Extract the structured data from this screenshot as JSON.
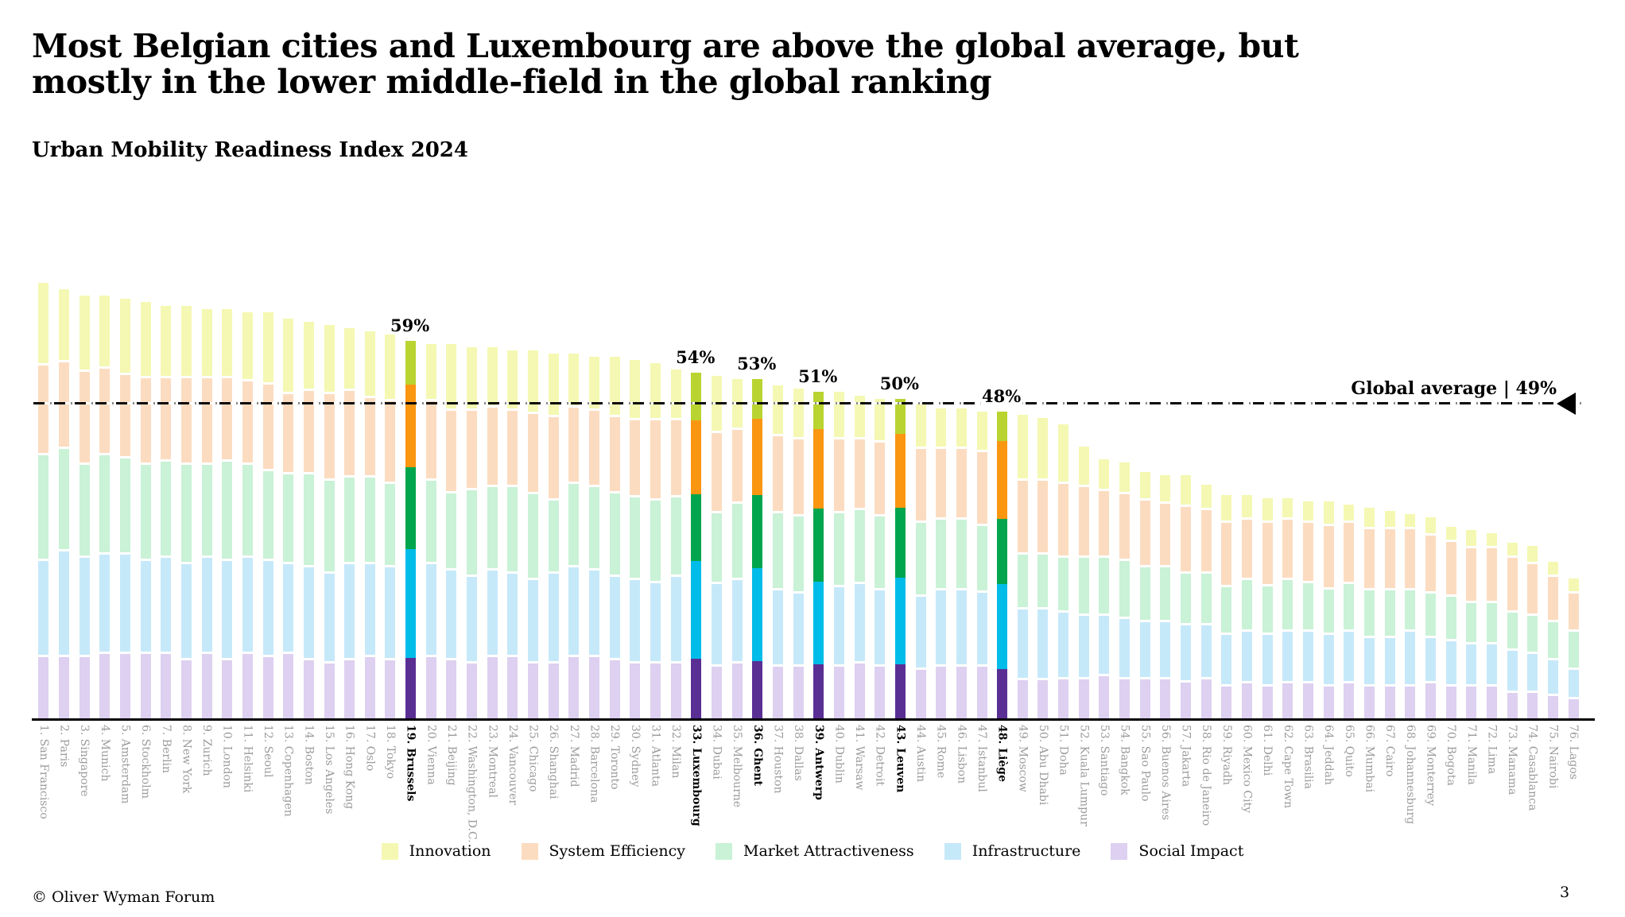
{
  "header": {
    "title_line1": "Most Belgian cities and Luxembourg are above the global average, but",
    "title_line2": "mostly in the lower middle-field in the global ranking",
    "subtitle": "Urban Mobility Readiness Index 2024"
  },
  "footer": {
    "copyright": "© Oliver Wyman Forum",
    "page_number": "3"
  },
  "legend": [
    {
      "label": "Innovation",
      "color": "#f4f8b2"
    },
    {
      "label": "System Efficiency",
      "color": "#fcdcc0"
    },
    {
      "label": "Market Attractiveness",
      "color": "#c9f2d6"
    },
    {
      "label": "Infrastructure",
      "color": "#c6e9fa"
    },
    {
      "label": "Social Impact",
      "color": "#ddd0f0"
    }
  ],
  "chart_data": {
    "type": "bar",
    "subtype": "stacked-vertical",
    "title": "Urban Mobility Readiness Index 2024",
    "unit": "%",
    "ylim": [
      0,
      72
    ],
    "grid": false,
    "global_average": {
      "value": 49,
      "label": "Global average | 49%"
    },
    "components": [
      "Innovation",
      "System Efficiency",
      "Market Attractiveness",
      "Infrastructure",
      "Social Impact"
    ],
    "colors_muted": [
      "#f4f8b2",
      "#fcdcc0",
      "#c9f2d6",
      "#c6e9fa",
      "#ddd0f0"
    ],
    "colors_highlight": [
      "#b9d431",
      "#fb9611",
      "#00a54d",
      "#00bce8",
      "#5a2f94"
    ],
    "highlight_note": "Belgian cities and Luxembourg are highlighted with saturated colors and % labels",
    "cities": [
      {
        "rank": 1,
        "name": "1. San Francisco",
        "total": 68,
        "highlight": false,
        "values": [
          12.5,
          14,
          16.5,
          15,
          10
        ]
      },
      {
        "rank": 2,
        "name": "2. Paris",
        "total": 67,
        "highlight": false,
        "values": [
          11,
          13.5,
          16,
          16.5,
          10
        ]
      },
      {
        "rank": 3,
        "name": "3. Singapore",
        "total": 66,
        "highlight": false,
        "values": [
          11.5,
          14.5,
          14.5,
          15.5,
          10
        ]
      },
      {
        "rank": 4,
        "name": "4. Munich",
        "total": 66,
        "highlight": false,
        "values": [
          11,
          13.5,
          15.5,
          15.5,
          10.5
        ]
      },
      {
        "rank": 5,
        "name": "5. Amsterdam",
        "total": 65.5,
        "highlight": false,
        "values": [
          11.5,
          13,
          15,
          15.5,
          10.5
        ]
      },
      {
        "rank": 6,
        "name": "6. Stockholm",
        "total": 65,
        "highlight": false,
        "values": [
          11.5,
          13.5,
          15,
          14.5,
          10.5
        ]
      },
      {
        "rank": 7,
        "name": "7. Berlin",
        "total": 64.5,
        "highlight": false,
        "values": [
          11,
          13,
          15,
          15,
          10.5
        ]
      },
      {
        "rank": 8,
        "name": "8. New York",
        "total": 64.5,
        "highlight": false,
        "values": [
          11,
          13.5,
          15.5,
          15,
          9.5
        ]
      },
      {
        "rank": 9,
        "name": "9. Zurich",
        "total": 64,
        "highlight": false,
        "values": [
          10.5,
          13.5,
          14.5,
          15,
          10.5
        ]
      },
      {
        "rank": 10,
        "name": "10. London",
        "total": 64,
        "highlight": false,
        "values": [
          10.5,
          13,
          15.5,
          15.5,
          9.5
        ]
      },
      {
        "rank": 11,
        "name": "11. Helsinki",
        "total": 63.5,
        "highlight": false,
        "values": [
          10.5,
          13,
          14.5,
          15,
          10.5
        ]
      },
      {
        "rank": 12,
        "name": "12. Seoul",
        "total": 63.5,
        "highlight": false,
        "values": [
          11,
          13.5,
          14,
          15,
          10
        ]
      },
      {
        "rank": 13,
        "name": "13. Copenhagen",
        "total": 62.5,
        "highlight": false,
        "values": [
          11.5,
          12.5,
          14,
          14,
          10.5
        ]
      },
      {
        "rank": 14,
        "name": "14. Boston",
        "total": 62,
        "highlight": false,
        "values": [
          10.5,
          13,
          14.5,
          14.5,
          9.5
        ]
      },
      {
        "rank": 15,
        "name": "15. Los Angeles",
        "total": 61.5,
        "highlight": false,
        "values": [
          10.5,
          13.5,
          14.5,
          14,
          9
        ]
      },
      {
        "rank": 16,
        "name": "16. Hong Kong",
        "total": 61,
        "highlight": false,
        "values": [
          9.5,
          13.5,
          13.5,
          15,
          9.5
        ]
      },
      {
        "rank": 17,
        "name": "17. Oslo",
        "total": 60.5,
        "highlight": false,
        "values": [
          10,
          12.5,
          13.5,
          14.5,
          10
        ]
      },
      {
        "rank": 18,
        "name": "18. Tokyo",
        "total": 60,
        "highlight": false,
        "values": [
          10,
          13,
          13,
          14.5,
          9.5
        ]
      },
      {
        "rank": 19,
        "name": "19. Brussels",
        "total": 59,
        "highlight": true,
        "label": "59%",
        "values": [
          6.8,
          12.9,
          12.8,
          16.9,
          9.6
        ]
      },
      {
        "rank": 20,
        "name": "20. Vienna",
        "total": 58.5,
        "highlight": false,
        "values": [
          8.5,
          12.5,
          13,
          14.5,
          10
        ]
      },
      {
        "rank": 21,
        "name": "21. Beijing",
        "total": 58.5,
        "highlight": false,
        "values": [
          10,
          13,
          12,
          14,
          9.5
        ]
      },
      {
        "rank": 22,
        "name": "22. Washington, D.C.",
        "total": 58,
        "highlight": false,
        "values": [
          9.5,
          12.5,
          13.5,
          13.5,
          9
        ]
      },
      {
        "rank": 23,
        "name": "23. Montreal",
        "total": 58,
        "highlight": false,
        "values": [
          9,
          12.5,
          13,
          13.5,
          10
        ]
      },
      {
        "rank": 24,
        "name": "24. Vancouver",
        "total": 57.5,
        "highlight": false,
        "values": [
          9,
          12,
          13.5,
          13,
          10
        ]
      },
      {
        "rank": 25,
        "name": "25. Chicago",
        "total": 57.5,
        "highlight": false,
        "values": [
          9.5,
          12.5,
          13.5,
          13,
          9
        ]
      },
      {
        "rank": 26,
        "name": "26. Shanghai",
        "total": 57,
        "highlight": false,
        "values": [
          9.5,
          13,
          11.5,
          14,
          9
        ]
      },
      {
        "rank": 27,
        "name": "27. Madrid",
        "total": 57,
        "highlight": false,
        "values": [
          8,
          12,
          13,
          14,
          10
        ]
      },
      {
        "rank": 28,
        "name": "28. Barcelona",
        "total": 56.5,
        "highlight": false,
        "values": [
          8,
          12,
          13,
          13.5,
          10
        ]
      },
      {
        "rank": 29,
        "name": "29. Toronto",
        "total": 56.5,
        "highlight": false,
        "values": [
          9,
          12,
          13,
          13,
          9.5
        ]
      },
      {
        "rank": 30,
        "name": "30. Sydney",
        "total": 56,
        "highlight": false,
        "values": [
          9,
          12,
          13,
          13,
          9
        ]
      },
      {
        "rank": 31,
        "name": "31. Atlanta",
        "total": 55.5,
        "highlight": false,
        "values": [
          8.5,
          12.5,
          13,
          12.5,
          9
        ]
      },
      {
        "rank": 32,
        "name": "32. Milan",
        "total": 54.5,
        "highlight": false,
        "values": [
          7.5,
          12,
          12.5,
          13.5,
          9
        ]
      },
      {
        "rank": 33,
        "name": "33. Luxembourg",
        "total": 54,
        "highlight": true,
        "label": "54%",
        "values": [
          7.4,
          11.5,
          10.5,
          15.2,
          9.4
        ]
      },
      {
        "rank": 34,
        "name": "34. Dubai",
        "total": 53.5,
        "highlight": false,
        "values": [
          8.5,
          12.5,
          11,
          13,
          8.5
        ]
      },
      {
        "rank": 35,
        "name": "35. Melbourne",
        "total": 53,
        "highlight": false,
        "values": [
          7.5,
          11.5,
          12,
          13,
          9
        ]
      },
      {
        "rank": 36,
        "name": "36. Ghent",
        "total": 53,
        "highlight": true,
        "label": "53%",
        "values": [
          6.2,
          11.8,
          11.5,
          14.5,
          9
        ]
      },
      {
        "rank": 37,
        "name": "37. Houston",
        "total": 52,
        "highlight": false,
        "values": [
          7.5,
          12,
          12,
          12,
          8.5
        ]
      },
      {
        "rank": 38,
        "name": "38. Dallas",
        "total": 51.5,
        "highlight": false,
        "values": [
          7.5,
          12,
          12,
          11.5,
          8.5
        ]
      },
      {
        "rank": 39,
        "name": "39. Antwerp",
        "total": 51,
        "highlight": true,
        "label": "51%",
        "values": [
          5.8,
          12.3,
          11.4,
          13,
          8.5
        ]
      },
      {
        "rank": 40,
        "name": "40. Dublin",
        "total": 51,
        "highlight": false,
        "values": [
          7,
          11.5,
          11.5,
          12.5,
          8.5
        ]
      },
      {
        "rank": 41,
        "name": "41. Warsaw",
        "total": 50.5,
        "highlight": false,
        "values": [
          6.5,
          11,
          11.5,
          12.5,
          9
        ]
      },
      {
        "rank": 42,
        "name": "42. Detroit",
        "total": 50,
        "highlight": false,
        "values": [
          6.5,
          11.5,
          11.5,
          12,
          8.5
        ]
      },
      {
        "rank": 43,
        "name": "43. Leuven",
        "total": 50,
        "highlight": true,
        "label": "50%",
        "values": [
          5.5,
          11.5,
          11,
          13.5,
          8.5
        ]
      },
      {
        "rank": 44,
        "name": "44. Austin",
        "total": 49.5,
        "highlight": false,
        "values": [
          7,
          11.5,
          11.5,
          11.5,
          8
        ]
      },
      {
        "rank": 45,
        "name": "45. Rome",
        "total": 48.5,
        "highlight": false,
        "values": [
          6,
          11,
          11,
          12,
          8.5
        ]
      },
      {
        "rank": 46,
        "name": "46. Lisbon",
        "total": 48.5,
        "highlight": false,
        "values": [
          6,
          11,
          11,
          12,
          8.5
        ]
      },
      {
        "rank": 47,
        "name": "47. Istanbul",
        "total": 48,
        "highlight": false,
        "values": [
          6,
          11.5,
          10.5,
          11.5,
          8.5
        ]
      },
      {
        "rank": 48,
        "name": "48. Liège",
        "total": 48,
        "highlight": true,
        "label": "48%",
        "values": [
          4.6,
          12.2,
          10.1,
          13.3,
          7.8
        ]
      },
      {
        "rank": 49,
        "name": "49. Moscow",
        "total": 47.5,
        "highlight": false,
        "values": [
          10,
          11.5,
          8.5,
          11,
          6.5
        ]
      },
      {
        "rank": 50,
        "name": "50. Abu Dhabi",
        "total": 47,
        "highlight": false,
        "values": [
          9.5,
          11.5,
          8.5,
          11,
          6.5
        ]
      },
      {
        "rank": 51,
        "name": "51. Doha",
        "total": 46,
        "highlight": false,
        "values": [
          9,
          11.5,
          8.5,
          10.5,
          6.5
        ]
      },
      {
        "rank": 52,
        "name": "52. Kuala Lumpur",
        "total": 42.5,
        "highlight": false,
        "values": [
          6,
          11,
          9,
          10,
          6.5
        ]
      },
      {
        "rank": 53,
        "name": "53. Santiago",
        "total": 40.5,
        "highlight": false,
        "values": [
          4.5,
          10.5,
          9,
          9.5,
          7
        ]
      },
      {
        "rank": 54,
        "name": "54. Bangkok",
        "total": 40,
        "highlight": false,
        "values": [
          4.5,
          10.5,
          9,
          9.5,
          6.5
        ]
      },
      {
        "rank": 55,
        "name": "55. Sao Paulo",
        "total": 38.5,
        "highlight": false,
        "values": [
          4,
          10.5,
          8.5,
          9,
          6.5
        ]
      },
      {
        "rank": 56,
        "name": "56. Buenos Aires",
        "total": 38,
        "highlight": false,
        "values": [
          4,
          10,
          8.5,
          9,
          6.5
        ]
      },
      {
        "rank": 57,
        "name": "57. Jakarta",
        "total": 38,
        "highlight": false,
        "values": [
          4.5,
          10.5,
          8,
          9,
          6
        ]
      },
      {
        "rank": 58,
        "name": "58. Rio de Janeiro",
        "total": 36.5,
        "highlight": false,
        "values": [
          3.5,
          10,
          8,
          8.5,
          6.5
        ]
      },
      {
        "rank": 59,
        "name": "59. Riyadh",
        "total": 35,
        "highlight": false,
        "values": [
          4,
          10,
          7.5,
          8,
          5.5
        ]
      },
      {
        "rank": 60,
        "name": "60. Mexico City",
        "total": 35,
        "highlight": false,
        "values": [
          3.5,
          9.5,
          8,
          8,
          6
        ]
      },
      {
        "rank": 61,
        "name": "61. Delhi",
        "total": 34.5,
        "highlight": false,
        "values": [
          3.5,
          10,
          7.5,
          8,
          5.5
        ]
      },
      {
        "rank": 62,
        "name": "62. Cape Town",
        "total": 34.5,
        "highlight": false,
        "values": [
          3,
          9.5,
          8,
          8,
          6
        ]
      },
      {
        "rank": 63,
        "name": "63. Brasilia",
        "total": 34,
        "highlight": false,
        "values": [
          3,
          9.5,
          7.5,
          8,
          6
        ]
      },
      {
        "rank": 64,
        "name": "64. Jeddah",
        "total": 34,
        "highlight": false,
        "values": [
          3.5,
          10,
          7,
          8,
          5.5
        ]
      },
      {
        "rank": 65,
        "name": "65. Quito",
        "total": 33.5,
        "highlight": false,
        "values": [
          2.5,
          9.5,
          7.5,
          8,
          6
        ]
      },
      {
        "rank": 66,
        "name": "66. Mumbai",
        "total": 33,
        "highlight": false,
        "values": [
          3,
          9.5,
          7.5,
          7.5,
          5.5
        ]
      },
      {
        "rank": 67,
        "name": "67. Cairo",
        "total": 32.5,
        "highlight": false,
        "values": [
          2.5,
          9.5,
          7.5,
          7.5,
          5.5
        ]
      },
      {
        "rank": 68,
        "name": "68. Johannesburg",
        "total": 32,
        "highlight": false,
        "values": [
          2,
          9.5,
          6.5,
          8.5,
          5.5
        ]
      },
      {
        "rank": 69,
        "name": "69. Monterrey",
        "total": 31.5,
        "highlight": false,
        "values": [
          2.5,
          9,
          7,
          7,
          6
        ]
      },
      {
        "rank": 70,
        "name": "70. Bogota",
        "total": 30,
        "highlight": false,
        "values": [
          2,
          8.5,
          7,
          7,
          5.5
        ]
      },
      {
        "rank": 71,
        "name": "71. Manila",
        "total": 29.5,
        "highlight": false,
        "values": [
          2.5,
          8.5,
          6.5,
          6.5,
          5.5
        ]
      },
      {
        "rank": 72,
        "name": "72. Lima",
        "total": 29,
        "highlight": false,
        "values": [
          2,
          8.5,
          6.5,
          6.5,
          5.5
        ]
      },
      {
        "rank": 73,
        "name": "73. Manama",
        "total": 27.5,
        "highlight": false,
        "values": [
          2,
          8.5,
          6,
          6.5,
          4.5
        ]
      },
      {
        "rank": 74,
        "name": "74. Casablanca",
        "total": 27,
        "highlight": false,
        "values": [
          2.5,
          8,
          6,
          6,
          4.5
        ]
      },
      {
        "rank": 75,
        "name": "75. Nairobi",
        "total": 24.5,
        "highlight": false,
        "values": [
          2,
          7,
          6,
          5.5,
          4
        ]
      },
      {
        "rank": 76,
        "name": "76. Lagos",
        "total": 22,
        "highlight": false,
        "values": [
          2,
          6,
          6,
          4.5,
          3.5
        ]
      }
    ]
  }
}
